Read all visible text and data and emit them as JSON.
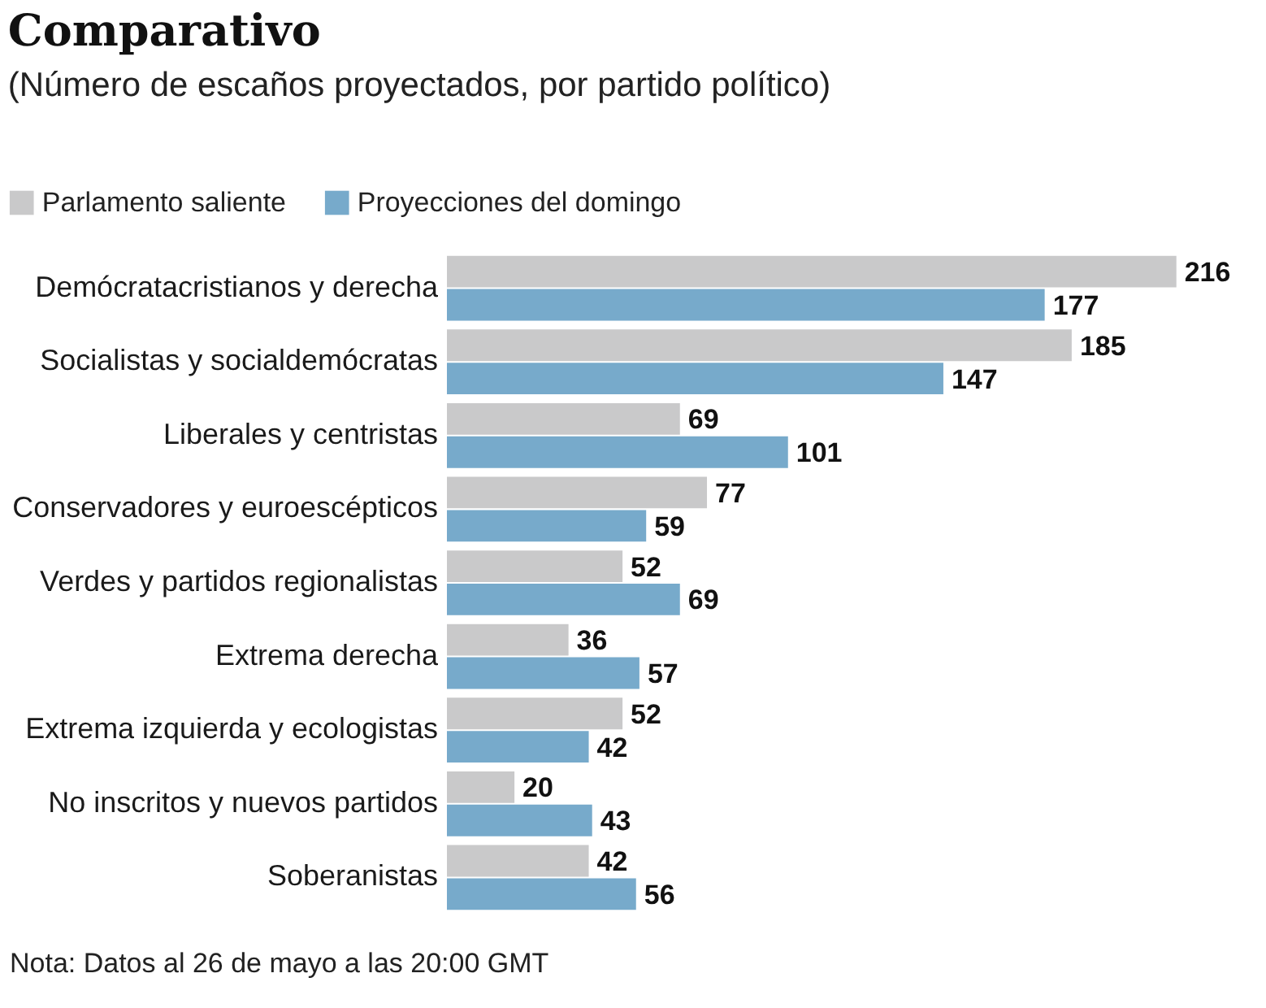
{
  "chart_data": {
    "type": "bar",
    "orientation": "horizontal",
    "title": "Comparativo",
    "subtitle": "(Número de escaños proyectados, por partido político)",
    "categories": [
      "Demócratacristianos y derecha",
      "Socialistas y socialdemócratas",
      "Liberales y centristas",
      "Conservadores y euroescépticos",
      "Verdes y partidos regionalistas",
      "Extrema derecha",
      "Extrema izquierda y ecologistas",
      "No inscritos y nuevos partidos",
      "Soberanistas"
    ],
    "series": [
      {
        "name": "Parlamento saliente",
        "color": "#c9c9ca",
        "values": [
          216,
          185,
          69,
          77,
          52,
          36,
          52,
          20,
          42
        ]
      },
      {
        "name": "Proyecciones del domingo",
        "color": "#77aacb",
        "values": [
          177,
          147,
          101,
          59,
          69,
          57,
          42,
          43,
          56
        ]
      }
    ],
    "data_labels": true,
    "legend": "top left",
    "annotations": [
      "Nota: Datos al 26 de mayo a las  20:00 GMT"
    ]
  }
}
